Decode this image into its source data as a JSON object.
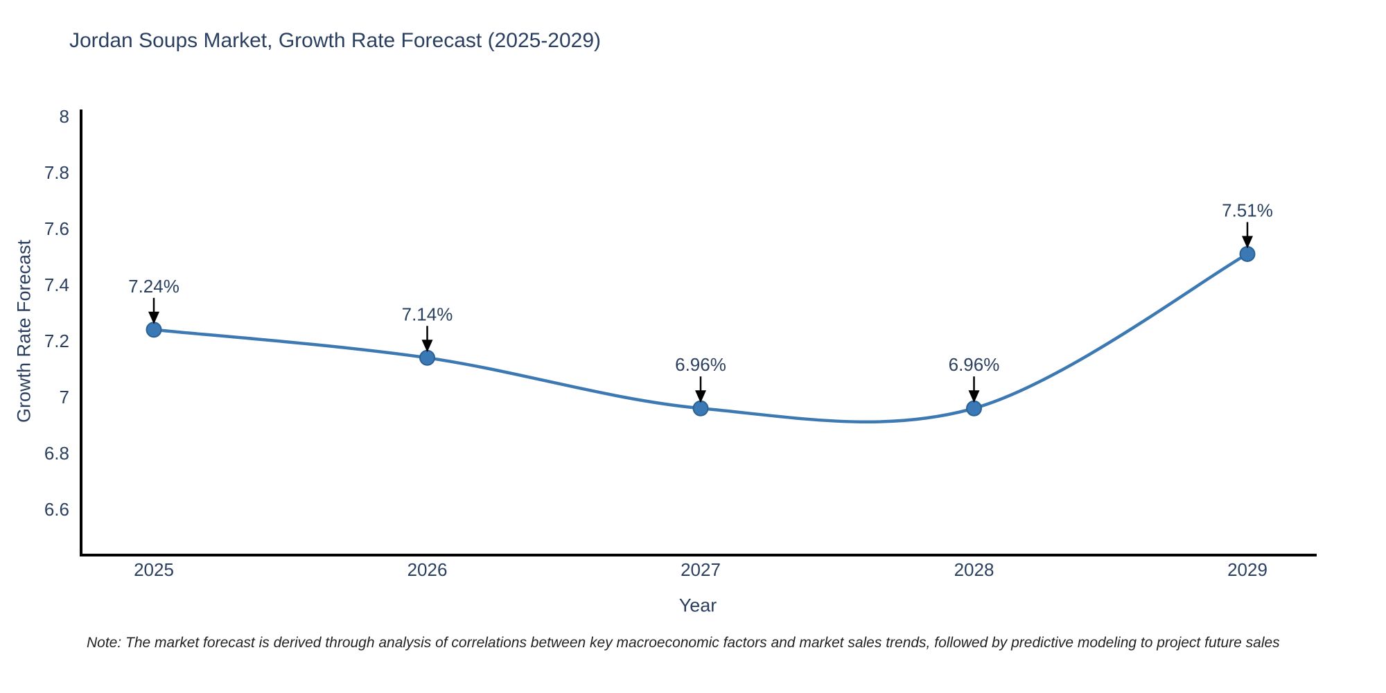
{
  "title": "Jordan Soups Market, Growth Rate Forecast (2025-2029)",
  "note": "Note: The market forecast is derived through analysis of correlations between key macroeconomic factors and market sales trends, followed by predictive modeling to project future sales",
  "chart_data": {
    "type": "line",
    "title": "Jordan Soups Market, Growth Rate Forecast (2025-2029)",
    "xlabel": "Year",
    "ylabel": "Growth Rate Forecast",
    "categories": [
      "2025",
      "2026",
      "2027",
      "2028",
      "2029"
    ],
    "series": [
      {
        "name": "Growth Rate Forecast",
        "values": [
          7.24,
          7.14,
          6.96,
          6.96,
          7.51
        ],
        "point_labels": [
          "7.24%",
          "7.14%",
          "6.96%",
          "6.96%",
          "7.51%"
        ]
      }
    ],
    "y_ticks": [
      8,
      7.8,
      7.6,
      7.4,
      7.2,
      7,
      6.8,
      6.6
    ],
    "ylim": [
      6.42,
      8.02
    ],
    "line_shape": "spline",
    "grid": false,
    "legend_position": "none",
    "annotations_have_arrows": true,
    "colors": {
      "line": "#3c79b2",
      "marker_fill": "#3a79b6",
      "marker_edge": "#2c6194",
      "axis_line": "#000000",
      "text": "#2a3f5f",
      "arrow": "#000000"
    }
  }
}
